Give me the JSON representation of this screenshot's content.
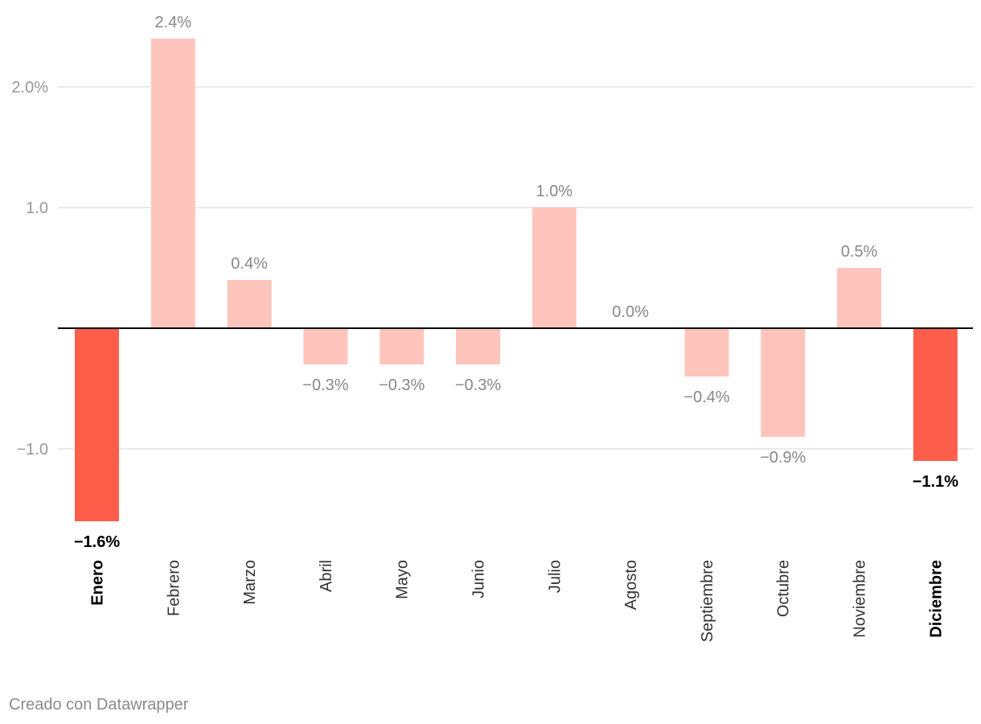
{
  "credit": "Creado con Datawrapper",
  "colors": {
    "highlight": "#ff5e4b",
    "normal": "#ffc5bd",
    "label_highlight": "#000000",
    "label_normal": "#888888",
    "axis_tick": "#999999",
    "gridline": "#e3e3e3",
    "baseline": "#000000"
  },
  "chart_data": {
    "type": "bar",
    "title": "",
    "xlabel": "",
    "ylabel": "",
    "categories": [
      "Enero",
      "Febrero",
      "Marzo",
      "Abril",
      "Mayo",
      "Junio",
      "Julio",
      "Agosto",
      "Septiembre",
      "Octubre",
      "Noviembre",
      "Diciembre"
    ],
    "values": [
      -1.6,
      2.4,
      0.4,
      -0.3,
      -0.3,
      -0.3,
      1.0,
      0.0,
      -0.4,
      -0.9,
      0.5,
      -1.1
    ],
    "value_labels": [
      "−1.6%",
      "2.4%",
      "0.4%",
      "−0.3%",
      "−0.3%",
      "−0.3%",
      "1.0%",
      "0.0%",
      "−0.4%",
      "−0.9%",
      "0.5%",
      "−1.1%"
    ],
    "highlighted": [
      true,
      false,
      false,
      false,
      false,
      false,
      false,
      false,
      false,
      false,
      false,
      true
    ],
    "ylim": [
      -1.6,
      2.4
    ],
    "yticks": [
      {
        "value": 2.0,
        "label": "2.0%"
      },
      {
        "value": 1.0,
        "label": "1.0"
      },
      {
        "value": -1.0,
        "label": "−1.0"
      }
    ],
    "grid": true,
    "category_labels_rotated": true
  }
}
